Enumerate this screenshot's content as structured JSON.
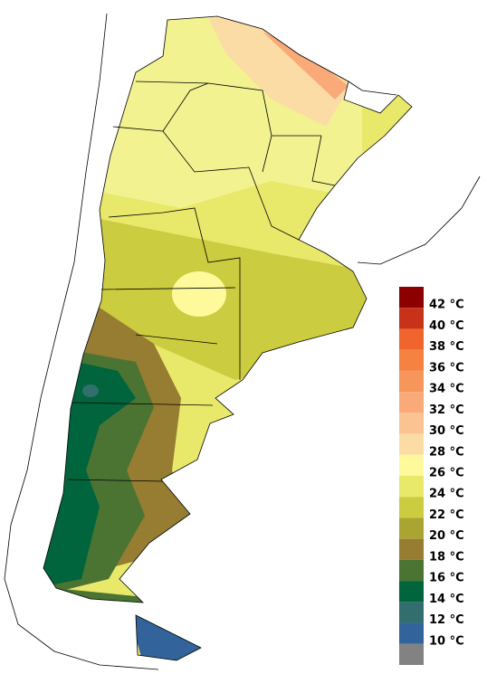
{
  "legend": {
    "colors": [
      "#8c0000",
      "#c83219",
      "#f0642d",
      "#f58241",
      "#f7965a",
      "#f9aa78",
      "#fbc391",
      "#fcdca5",
      "#fefa9b",
      "#e8e86a",
      "#cccc40",
      "#aaa532",
      "#967d32",
      "#4b7332",
      "#00643c",
      "#326e6e",
      "#32649b",
      "#828282"
    ],
    "labels": [
      "42 °C",
      "40 °C",
      "38 °C",
      "36 °C",
      "34 °C",
      "32 °C",
      "30 °C",
      "28 °C",
      "26 °C",
      "24 °C",
      "22 °C",
      "20 °C",
      "18 °C",
      "16 °C",
      "14 °C",
      "12 °C",
      "10 °C"
    ]
  }
}
